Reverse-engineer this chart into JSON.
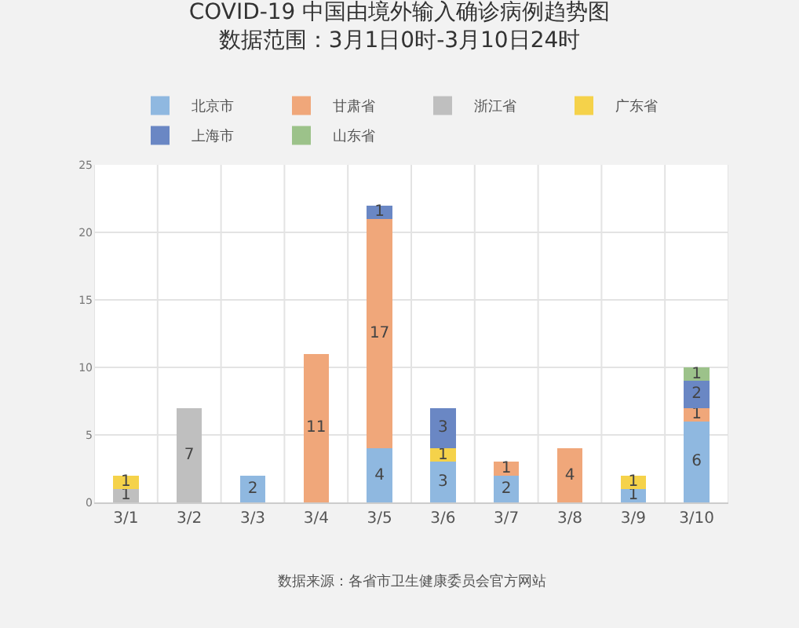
{
  "chart_data": {
    "type": "bar",
    "title": "COVID-19 中国由境外输入确诊病例趋势图",
    "subtitle": "数据范围：3月1日0时-3月10日24时",
    "categories": [
      "3/1",
      "3/2",
      "3/3",
      "3/4",
      "3/5",
      "3/6",
      "3/7",
      "3/8",
      "3/9",
      "3/10"
    ],
    "series": [
      {
        "name": "北京市",
        "color": "#8fb8e0",
        "values": [
          null,
          null,
          2,
          null,
          4,
          3,
          2,
          null,
          1,
          6
        ]
      },
      {
        "name": "甘肃省",
        "color": "#f0a77a",
        "values": [
          null,
          null,
          null,
          11,
          17,
          null,
          1,
          4,
          null,
          1
        ]
      },
      {
        "name": "浙江省",
        "color": "#bfbfbf",
        "values": [
          1,
          7,
          null,
          null,
          null,
          null,
          null,
          null,
          null,
          null
        ]
      },
      {
        "name": "广东省",
        "color": "#f5d24a",
        "values": [
          1,
          null,
          null,
          null,
          null,
          1,
          null,
          null,
          1,
          null
        ]
      },
      {
        "name": "上海市",
        "color": "#6a87c4",
        "values": [
          null,
          null,
          null,
          null,
          1,
          3,
          null,
          null,
          null,
          2
        ]
      },
      {
        "name": "山东省",
        "color": "#9cc28a",
        "values": [
          null,
          null,
          null,
          null,
          null,
          null,
          null,
          null,
          null,
          1
        ]
      }
    ],
    "stacked": true,
    "data_labels": true,
    "ylim": [
      0,
      25
    ],
    "yticks": [
      0,
      5,
      10,
      15,
      20,
      25
    ],
    "grid": true,
    "legend": "top",
    "annotations": [
      "数据来源：各省市卫生健康委员会官方网站"
    ]
  }
}
